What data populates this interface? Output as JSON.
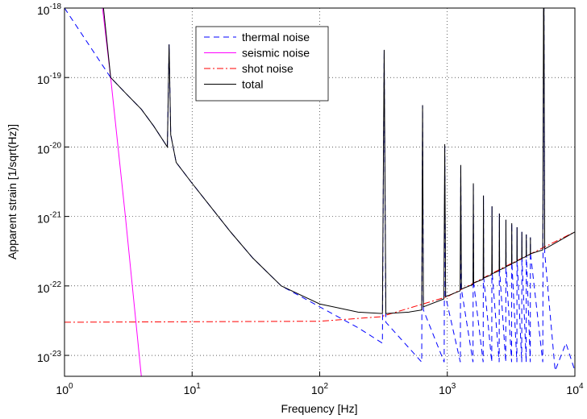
{
  "chart_data": {
    "type": "line",
    "xlabel": "Frequency [Hz]",
    "ylabel": "Apparent strain [1/sqrt(Hz)]",
    "xscale": "log",
    "yscale": "log",
    "grid": true,
    "legend": "upper center",
    "xlim": [
      1,
      10000
    ],
    "ylim": [
      5e-24,
      1e-18
    ],
    "xticks": [
      {
        "value": 1,
        "label": "10",
        "exponent": "0"
      },
      {
        "value": 10,
        "label": "10",
        "exponent": "1"
      },
      {
        "value": 100,
        "label": "10",
        "exponent": "2"
      },
      {
        "value": 1000,
        "label": "10",
        "exponent": "3"
      },
      {
        "value": 10000,
        "label": "10",
        "exponent": "4"
      }
    ],
    "yticks": [
      {
        "value": 1e-23,
        "label": "10",
        "exponent": "-23"
      },
      {
        "value": 1e-22,
        "label": "10",
        "exponent": "-22"
      },
      {
        "value": 1e-21,
        "label": "10",
        "exponent": "-21"
      },
      {
        "value": 1e-20,
        "label": "10",
        "exponent": "-20"
      },
      {
        "value": 1e-19,
        "label": "10",
        "exponent": "-19"
      },
      {
        "value": 1e-18,
        "label": "10",
        "exponent": "-18"
      }
    ],
    "series": [
      {
        "name": "thermal noise",
        "color": "#0000ff",
        "dash": "7,5",
        "x": [
          1,
          2.3,
          3,
          4,
          5,
          6,
          6.4,
          6.6,
          6.8,
          7.5,
          10,
          20,
          30,
          50,
          100,
          200,
          310,
          320,
          330,
          630,
          640,
          650,
          945,
          955,
          970,
          1265,
          1275,
          1290,
          1590,
          1600,
          1610,
          1910,
          1920,
          1930,
          2230,
          2240,
          2250,
          2550,
          2560,
          2570,
          2870,
          2880,
          2890,
          3190,
          3200,
          3210,
          3510,
          3520,
          3530,
          3830,
          3840,
          3850,
          4150,
          4160,
          4170,
          4470,
          4480,
          4490,
          5600,
          5700,
          5800,
          7000,
          8500,
          10000
        ],
        "values": [
          1e-18,
          1e-19,
          6e-20,
          3.5e-20,
          2e-20,
          1.2e-20,
          1e-20,
          3e-19,
          1.5e-20,
          6e-21,
          3e-21,
          6e-22,
          2.5e-22,
          1e-22,
          5e-23,
          2.5e-23,
          1.5e-23,
          2.5e-19,
          3e-23,
          8e-24,
          4e-20,
          4.5e-23,
          8e-24,
          1.1e-20,
          7e-23,
          8e-24,
          5.5e-21,
          9e-23,
          8e-24,
          3e-21,
          1.1e-22,
          8e-24,
          2e-21,
          1.3e-22,
          8e-24,
          1.4e-21,
          1.5e-22,
          8e-24,
          1.1e-21,
          1.7e-22,
          8e-24,
          9e-22,
          1.9e-22,
          8e-24,
          8e-22,
          2.1e-22,
          8e-24,
          7e-22,
          2.3e-22,
          8e-24,
          6e-22,
          2.5e-22,
          8e-24,
          5.5e-22,
          2.7e-22,
          8e-24,
          5e-22,
          2.9e-22,
          8e-24,
          1e-17,
          3e-22,
          6e-24,
          1.5e-23,
          6e-24
        ]
      },
      {
        "name": "seismic noise",
        "color": "#ff00ff",
        "dash": "none",
        "x": [
          1.9,
          2.3,
          3,
          4
        ],
        "values": [
          2e-18,
          1e-19,
          1e-21,
          5e-24
        ]
      },
      {
        "name": "shot noise",
        "color": "#ff0000",
        "dash": "8,3,2,3",
        "x": [
          1,
          100,
          300,
          1000,
          3000,
          10000
        ],
        "values": [
          3e-23,
          3.1e-23,
          3.6e-23,
          7e-23,
          2e-22,
          6e-22
        ]
      },
      {
        "name": "total",
        "color": "#000000",
        "dash": "none",
        "x": [
          2,
          2.3,
          3,
          4,
          5,
          6,
          6.4,
          6.6,
          6.8,
          7.5,
          10,
          20,
          30,
          50,
          100,
          200,
          310,
          320,
          330,
          500,
          630,
          640,
          650,
          940,
          955,
          970,
          1260,
          1275,
          1290,
          1590,
          1600,
          1610,
          1910,
          1920,
          1930,
          2230,
          2240,
          2250,
          2550,
          2560,
          2570,
          2870,
          2880,
          2890,
          3190,
          3200,
          3210,
          3510,
          3520,
          3530,
          3830,
          3840,
          3850,
          4150,
          4160,
          4170,
          4470,
          4480,
          4490,
          5600,
          5700,
          5800,
          10000
        ],
        "values": [
          1.2e-18,
          1e-19,
          6e-20,
          3.5e-20,
          2e-20,
          1.2e-20,
          1e-20,
          3e-19,
          1.5e-20,
          6e-21,
          3e-21,
          6e-22,
          2.5e-22,
          1e-22,
          5.5e-23,
          4.2e-23,
          4e-23,
          2.5e-19,
          4e-23,
          4.2e-23,
          4.5e-23,
          4e-20,
          5e-23,
          6.5e-23,
          1.1e-20,
          7e-23,
          8.5e-23,
          5.5e-21,
          9e-23,
          1.05e-22,
          3e-21,
          1.1e-22,
          1.25e-22,
          2e-21,
          1.3e-22,
          1.45e-22,
          1.4e-21,
          1.5e-22,
          1.65e-22,
          1.1e-21,
          1.7e-22,
          1.85e-22,
          9e-22,
          1.9e-22,
          2.05e-22,
          8e-22,
          2.1e-22,
          2.25e-22,
          7e-22,
          2.3e-22,
          2.45e-22,
          6e-22,
          2.5e-22,
          2.65e-22,
          5.5e-22,
          2.7e-22,
          2.85e-22,
          5e-22,
          2.9e-22,
          3.3e-22,
          1e-17,
          3.4e-22,
          6e-22
        ]
      }
    ]
  }
}
